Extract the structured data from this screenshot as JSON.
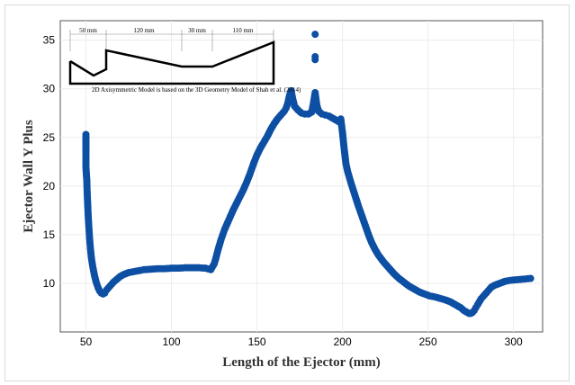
{
  "chart_data": {
    "type": "scatter",
    "title": "",
    "xlabel": "Length of the Ejector (mm)",
    "ylabel": "Ejector Wall Y Plus",
    "xlim": [
      35,
      317
    ],
    "ylim": [
      5,
      37
    ],
    "xticks": [
      "50",
      "100",
      "150",
      "200",
      "250",
      "300"
    ],
    "yticks": [
      "10",
      "15",
      "20",
      "25",
      "30",
      "35"
    ],
    "grid": true,
    "marker_color": "#0d4fa3",
    "series": [
      {
        "points": [
          [
            50,
            25.3
          ],
          [
            50,
            24.9
          ],
          [
            50,
            23.6
          ],
          [
            50,
            22.5
          ],
          [
            50,
            21.9
          ],
          [
            50.5,
            20.6
          ],
          [
            50.7,
            19.4
          ],
          [
            51,
            18.2
          ],
          [
            51.3,
            17.0
          ],
          [
            51.7,
            15.8
          ],
          [
            52.1,
            14.7
          ],
          [
            52.6,
            13.6
          ],
          [
            53.2,
            12.6
          ],
          [
            54,
            11.7
          ],
          [
            55,
            10.8
          ],
          [
            56,
            10.1
          ],
          [
            57,
            9.6
          ],
          [
            58,
            9.2
          ],
          [
            59,
            9.0
          ],
          [
            60,
            8.9
          ],
          [
            61,
            9.0
          ],
          [
            62,
            9.3
          ],
          [
            64,
            9.7
          ],
          [
            66,
            10.1
          ],
          [
            68,
            10.4
          ],
          [
            70,
            10.7
          ],
          [
            72,
            10.9
          ],
          [
            75,
            11.1
          ],
          [
            78,
            11.2
          ],
          [
            81,
            11.3
          ],
          [
            84,
            11.4
          ],
          [
            88,
            11.45
          ],
          [
            92,
            11.5
          ],
          [
            96,
            11.5
          ],
          [
            100,
            11.55
          ],
          [
            104,
            11.55
          ],
          [
            108,
            11.6
          ],
          [
            112,
            11.6
          ],
          [
            116,
            11.6
          ],
          [
            120,
            11.55
          ],
          [
            123,
            11.4
          ],
          [
            125,
            12.0
          ],
          [
            126,
            12.6
          ],
          [
            127,
            13.3
          ],
          [
            128,
            13.9
          ],
          [
            129,
            14.5
          ],
          [
            130,
            15.0
          ],
          [
            131,
            15.5
          ],
          [
            132,
            15.9
          ],
          [
            134,
            16.7
          ],
          [
            136,
            17.5
          ],
          [
            138,
            18.2
          ],
          [
            140,
            18.9
          ],
          [
            142,
            19.6
          ],
          [
            144,
            20.4
          ],
          [
            146,
            21.3
          ],
          [
            148,
            22.3
          ],
          [
            150,
            23.2
          ],
          [
            152,
            23.9
          ],
          [
            154,
            24.5
          ],
          [
            156,
            25.1
          ],
          [
            158,
            25.8
          ],
          [
            160,
            26.4
          ],
          [
            162,
            26.9
          ],
          [
            164,
            27.3
          ],
          [
            166,
            27.7
          ],
          [
            167,
            28.0
          ],
          [
            168,
            28.5
          ],
          [
            169,
            29.3
          ],
          [
            170,
            29.8
          ],
          [
            171,
            28.9
          ],
          [
            172,
            28.2
          ],
          [
            174,
            27.8
          ],
          [
            176,
            27.5
          ],
          [
            178,
            27.4
          ],
          [
            180,
            27.4
          ],
          [
            182,
            27.6
          ],
          [
            183,
            28.5
          ],
          [
            184,
            29.6
          ],
          [
            185,
            28.3
          ],
          [
            186,
            27.7
          ],
          [
            188,
            27.4
          ],
          [
            190,
            27.3
          ],
          [
            192,
            27.2
          ],
          [
            194,
            27.0
          ],
          [
            196,
            26.8
          ],
          [
            198,
            26.6
          ],
          [
            199,
            26.9
          ],
          [
            200,
            25.5
          ],
          [
            201,
            23.8
          ],
          [
            202,
            22.3
          ],
          [
            203,
            21.5
          ],
          [
            205,
            20.3
          ],
          [
            207,
            19.2
          ],
          [
            209,
            18.1
          ],
          [
            211,
            17.1
          ],
          [
            213,
            16.1
          ],
          [
            215,
            15.1
          ],
          [
            217,
            14.2
          ],
          [
            219,
            13.5
          ],
          [
            221,
            12.9
          ],
          [
            224,
            12.2
          ],
          [
            227,
            11.6
          ],
          [
            230,
            11.0
          ],
          [
            233,
            10.5
          ],
          [
            236,
            10.1
          ],
          [
            239,
            9.7
          ],
          [
            242,
            9.4
          ],
          [
            245,
            9.1
          ],
          [
            248,
            8.9
          ],
          [
            251,
            8.7
          ],
          [
            254,
            8.6
          ],
          [
            257,
            8.45
          ],
          [
            260,
            8.3
          ],
          [
            263,
            8.1
          ],
          [
            266,
            7.8
          ],
          [
            269,
            7.5
          ],
          [
            271,
            7.2
          ],
          [
            273,
            7.0
          ],
          [
            274,
            6.9
          ],
          [
            275,
            6.9
          ],
          [
            276,
            7.0
          ],
          [
            277,
            7.2
          ],
          [
            278,
            7.5
          ],
          [
            279,
            7.8
          ],
          [
            281,
            8.4
          ],
          [
            283,
            8.8
          ],
          [
            285,
            9.2
          ],
          [
            287,
            9.6
          ],
          [
            289,
            9.8
          ],
          [
            292,
            10.0
          ],
          [
            295,
            10.2
          ],
          [
            298,
            10.3
          ],
          [
            301,
            10.35
          ],
          [
            304,
            10.4
          ],
          [
            307,
            10.45
          ],
          [
            310,
            10.5
          ],
          [
            184,
            33.3
          ],
          [
            184,
            33.0
          ],
          [
            184,
            35.6
          ]
        ]
      }
    ],
    "inset": {
      "segment_labels": [
        "50 mm",
        "120 mm",
        "30 mm",
        "110 mm"
      ],
      "caption": "2D Axisymmetric Model is based on the 3D Geometry Model of Shah et al. (2014)"
    }
  }
}
